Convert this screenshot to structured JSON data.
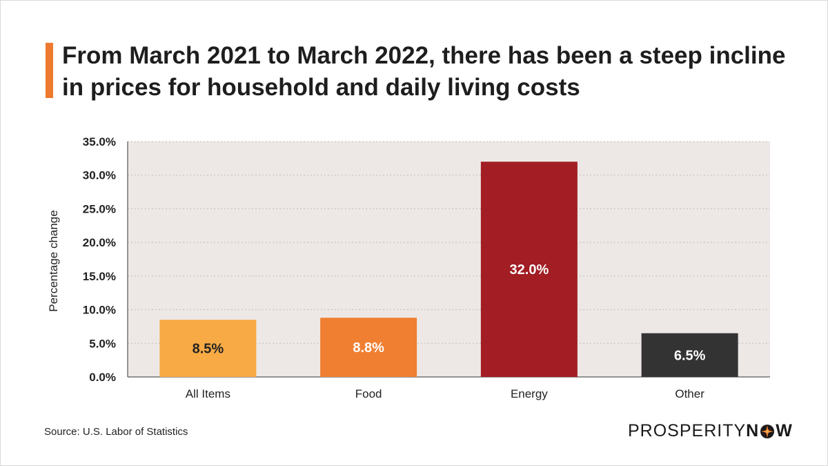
{
  "title": "From March 2021 to March 2022, there has been a steep incline in prices for household and daily living costs",
  "source": "Source: U.S. Labor of Statistics",
  "logo": {
    "light": "PROSPERITY",
    "bold_start": "N",
    "bold_end": "W"
  },
  "colors": {
    "accent": "#ee7a2f",
    "plot_background": "#ede8e6",
    "gridline": "#bdbdbd"
  },
  "chart_data": {
    "type": "bar",
    "categories": [
      "All Items",
      "Food",
      "Energy",
      "Other"
    ],
    "values": [
      8.5,
      8.8,
      32.0,
      6.5
    ],
    "data_labels": [
      "8.5%",
      "8.8%",
      "32.0%",
      "6.5%"
    ],
    "bar_colors": [
      "#f8aa44",
      "#f07f32",
      "#a21d24",
      "#333333"
    ],
    "label_colors": [
      "#222222",
      "#ffffff",
      "#ffffff",
      "#ffffff"
    ],
    "ylabel": "Percentage change",
    "xlabel": "",
    "ylim": [
      0,
      35
    ],
    "yticks": [
      0,
      5,
      10,
      15,
      20,
      25,
      30,
      35
    ],
    "ytick_labels": [
      "0.0%",
      "5.0%",
      "10.0%",
      "15.0%",
      "20.0%",
      "25.0%",
      "30.0%",
      "35.0%"
    ],
    "grid": true,
    "legend": "none"
  }
}
